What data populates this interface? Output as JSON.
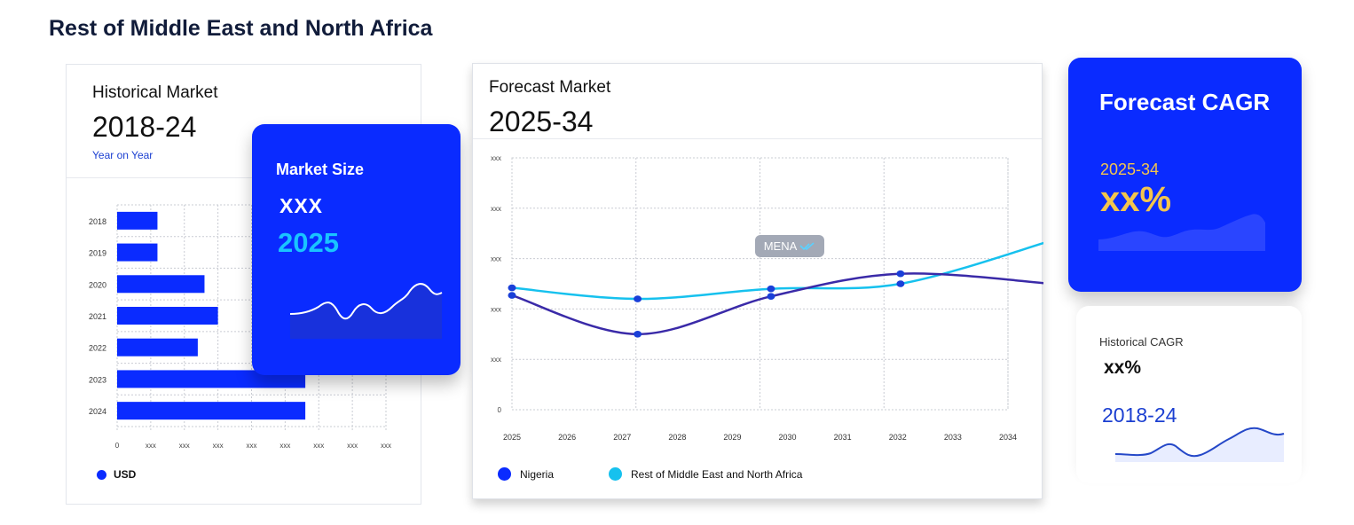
{
  "page_title": "Rest of Middle East and North Africa",
  "historical": {
    "label": "Historical Market",
    "period": "2018-24",
    "subtitle": "Year on Year",
    "legend": "USD"
  },
  "market_size": {
    "label": "Market Size",
    "value": "XXX",
    "year": "2025"
  },
  "forecast": {
    "label": "Forecast Market",
    "period": "2025-34",
    "badge": "MENA"
  },
  "forecast_cagr": {
    "label": "Forecast CAGR",
    "period": "2025-34",
    "value": "xx%"
  },
  "historical_cagr": {
    "label": "Historical CAGR",
    "value": "xx%",
    "period": "2018-24"
  },
  "colors": {
    "brand_blue": "#0a2bff",
    "nigeria": "#3a2aa8",
    "rest_mena": "#16c1ee",
    "accent_yellow": "#f3c54e",
    "accent_cyan": "#19c4ff"
  },
  "chart_data": [
    {
      "type": "bar",
      "orientation": "horizontal",
      "categories": [
        "2018",
        "2019",
        "2020",
        "2021",
        "2022",
        "2023",
        "2024"
      ],
      "values": [
        1.2,
        1.2,
        2.6,
        3.0,
        2.4,
        5.6,
        5.6
      ],
      "xtick_labels": [
        "0",
        "xxx",
        "xxx",
        "xxx",
        "xxx",
        "xxx",
        "xxx",
        "xxx",
        "xxx"
      ],
      "xlim": [
        0,
        8
      ],
      "grid": true,
      "legend": [
        "USD"
      ]
    },
    {
      "type": "line",
      "x": [
        "2025",
        "2026",
        "2027",
        "2028",
        "2029",
        "2030",
        "2031",
        "2032",
        "2033",
        "2034"
      ],
      "ytick_labels": [
        "0",
        "xxx",
        "xxx",
        "xxx",
        "xxx",
        "xxx"
      ],
      "ylim": [
        0,
        5
      ],
      "grid": true,
      "legend_position": "bottom",
      "series": [
        {
          "name": "Nigeria",
          "points": [
            [
              0,
              2.27
            ],
            [
              2.28,
              1.5
            ],
            [
              4.7,
              2.25
            ],
            [
              7.05,
              2.7
            ],
            [
              9.8,
              2.5
            ]
          ]
        },
        {
          "name": "Rest of Middle East and North Africa",
          "points": [
            [
              0,
              2.42
            ],
            [
              2.28,
              2.2
            ],
            [
              4.7,
              2.4
            ],
            [
              7.05,
              2.5
            ],
            [
              9.8,
              3.36
            ]
          ]
        }
      ]
    }
  ]
}
